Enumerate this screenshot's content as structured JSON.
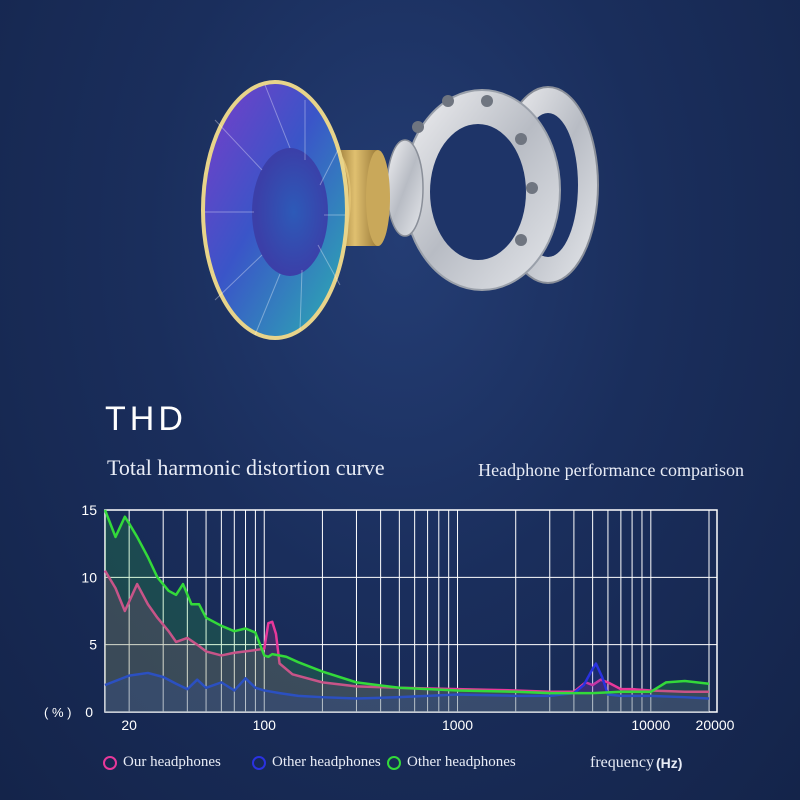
{
  "header": {
    "title": "THD",
    "subtitle": "Total harmonic distortion curve",
    "comparison": "Headphone performance comparison"
  },
  "legend": {
    "items": [
      {
        "label": "Our headphones",
        "color": "#e8389a"
      },
      {
        "label": "Other headphones",
        "color": "#2a32e0"
      },
      {
        "label": "Other headphones",
        "color": "#33d93a"
      }
    ],
    "frequency_label": "frequency",
    "frequency_unit": "(Hz)"
  },
  "chart_data": {
    "type": "line",
    "title": "Total harmonic distortion curve",
    "xlabel": "frequency (Hz)",
    "ylabel": "(%)",
    "x_scale": "log",
    "xlim": [
      15,
      22000
    ],
    "ylim": [
      0,
      15
    ],
    "x_tick_labels": [
      "20",
      "100",
      "1000",
      "10000",
      "20000"
    ],
    "x_tick_values": [
      20,
      100,
      1000,
      10000,
      20000
    ],
    "y_tick_labels": [
      "0",
      "5",
      "10",
      "15"
    ],
    "y_tick_values": [
      0,
      5,
      10,
      15
    ],
    "y_unit_label": "( % )",
    "grid": true,
    "series": [
      {
        "name": "Our headphones",
        "color": "#e8389a",
        "x": [
          15,
          17,
          19,
          20,
          22,
          25,
          28,
          32,
          35,
          40,
          45,
          50,
          60,
          70,
          80,
          90,
          100,
          105,
          110,
          115,
          120,
          140,
          200,
          300,
          500,
          1000,
          2000,
          3000,
          4000,
          4600,
          5000,
          5500,
          6000,
          7000,
          8000,
          10000,
          15000,
          20000
        ],
        "y": [
          10.5,
          9.2,
          7.5,
          8.2,
          9.5,
          8.0,
          7.0,
          6.0,
          5.2,
          5.5,
          5.0,
          4.5,
          4.2,
          4.4,
          4.5,
          4.6,
          4.7,
          6.6,
          6.7,
          5.8,
          3.6,
          2.8,
          2.2,
          1.9,
          1.8,
          1.7,
          1.6,
          1.5,
          1.5,
          2.2,
          2.0,
          2.4,
          2.2,
          1.7,
          1.7,
          1.6,
          1.5,
          1.5
        ]
      },
      {
        "name": "Other headphones",
        "color": "#2a32e0",
        "x": [
          15,
          20,
          25,
          30,
          35,
          40,
          45,
          50,
          60,
          70,
          80,
          90,
          100,
          120,
          150,
          200,
          300,
          500,
          1000,
          2000,
          3000,
          4000,
          4500,
          5000,
          5200,
          5600,
          6000,
          7000,
          10000,
          15000,
          20000
        ],
        "y": [
          2.0,
          2.7,
          2.9,
          2.6,
          2.1,
          1.7,
          2.4,
          1.8,
          2.2,
          1.6,
          2.5,
          1.8,
          1.6,
          1.4,
          1.2,
          1.1,
          1.0,
          1.1,
          1.3,
          1.2,
          1.2,
          1.4,
          2.0,
          3.2,
          3.6,
          2.6,
          1.3,
          1.2,
          1.2,
          1.1,
          1.0
        ]
      },
      {
        "name": "Other headphones",
        "color": "#33d93a",
        "x": [
          15,
          17,
          19,
          20,
          22,
          25,
          28,
          32,
          35,
          38,
          42,
          46,
          50,
          60,
          70,
          80,
          90,
          100,
          105,
          110,
          130,
          150,
          200,
          300,
          500,
          1000,
          2000,
          3000,
          5000,
          7000,
          10000,
          12000,
          15000,
          20000
        ],
        "y": [
          15.0,
          13.0,
          14.5,
          14.0,
          13.0,
          11.5,
          10.0,
          9.0,
          8.7,
          9.5,
          8.0,
          8.0,
          7.0,
          6.4,
          6.0,
          6.2,
          5.9,
          4.2,
          4.1,
          4.3,
          4.1,
          3.7,
          3.0,
          2.2,
          1.8,
          1.6,
          1.5,
          1.4,
          1.4,
          1.5,
          1.5,
          2.2,
          2.3,
          2.1
        ]
      }
    ]
  }
}
